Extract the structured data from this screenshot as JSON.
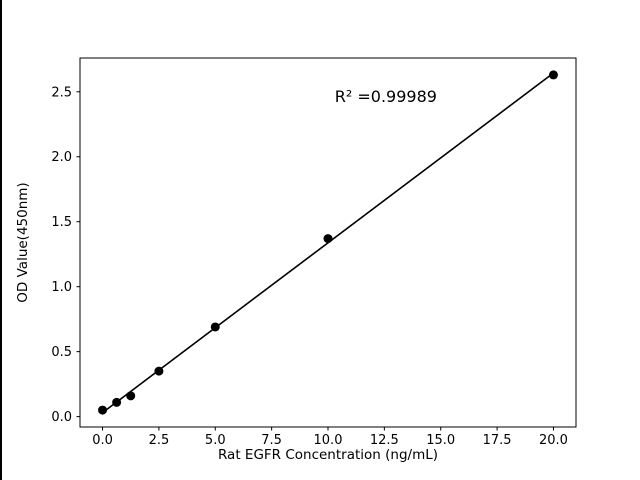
{
  "chart_data": {
    "type": "scatter",
    "title": "",
    "xlabel": "Rat EGFR Concentration (ng/mL)",
    "ylabel": "OD Value(450nm)",
    "x": [
      0,
      0.625,
      1.25,
      2.5,
      5,
      10,
      20
    ],
    "y": [
      0.05,
      0.11,
      0.16,
      0.35,
      0.69,
      1.37,
      2.63
    ],
    "fit_line": true,
    "annotation": {
      "text": "R² =0.99989",
      "x": 10.3,
      "y": 2.42
    },
    "xlim": [
      -1,
      21
    ],
    "ylim": [
      -0.08,
      2.76
    ],
    "xticks": {
      "values": [
        0,
        2.5,
        5,
        7.5,
        10,
        12.5,
        15,
        17.5,
        20
      ],
      "labels": [
        "0.0",
        "2.5",
        "5.0",
        "7.5",
        "10.0",
        "12.5",
        "15.0",
        "17.5",
        "20.0"
      ]
    },
    "yticks": {
      "values": [
        0,
        0.5,
        1,
        1.5,
        2,
        2.5
      ],
      "labels": [
        "0.0",
        "0.5",
        "1.0",
        "1.5",
        "2.0",
        "2.5"
      ]
    },
    "grid": false,
    "legend": null,
    "colors": {
      "line": "#000000",
      "marker": "#000000",
      "axes": "#000000",
      "background": "#ffffff"
    }
  }
}
